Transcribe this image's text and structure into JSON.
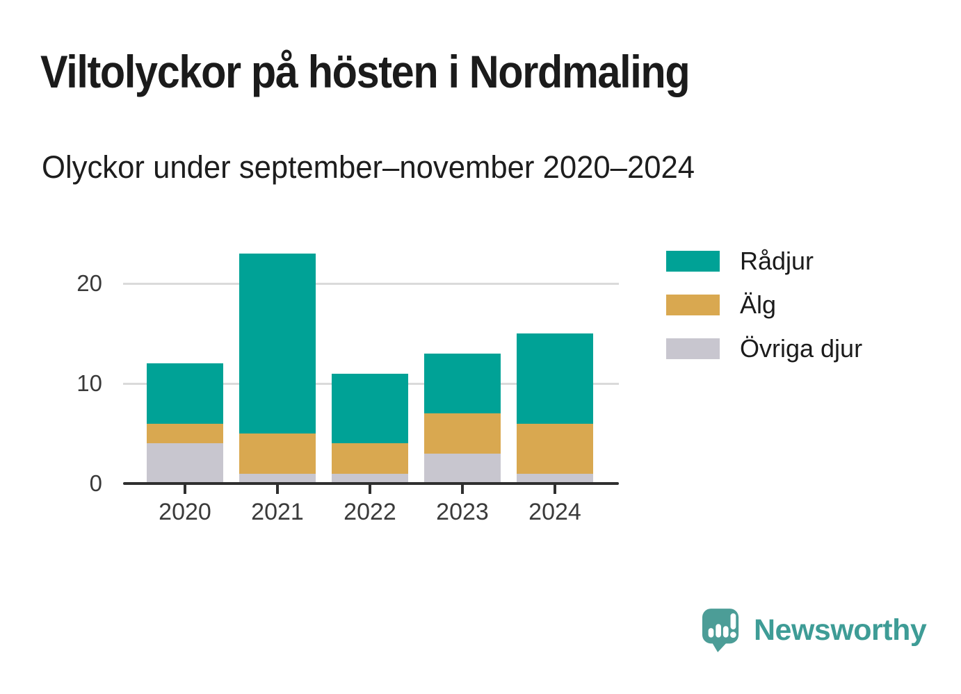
{
  "chart_data": {
    "type": "bar",
    "stacked": true,
    "title": "Viltolyckor på hösten i Nordmaling",
    "subtitle": "Olyckor under september–november 2020–2024",
    "categories": [
      "2020",
      "2021",
      "2022",
      "2023",
      "2024"
    ],
    "series": [
      {
        "name": "Rådjur",
        "color": "#00a296",
        "values": [
          6,
          18,
          7,
          6,
          9
        ]
      },
      {
        "name": "Älg",
        "color": "#d9a850",
        "values": [
          2,
          4,
          3,
          4,
          5
        ]
      },
      {
        "name": "Övriga djur",
        "color": "#c8c6cf",
        "values": [
          4,
          1,
          1,
          3,
          1
        ]
      }
    ],
    "totals": [
      12,
      23,
      11,
      13,
      15
    ],
    "stack_order_bottom_to_top": [
      "Övriga djur",
      "Älg",
      "Rådjur"
    ],
    "yticks": [
      0,
      10,
      20
    ],
    "ylim": [
      0,
      24
    ],
    "xlabel": "",
    "ylabel": "",
    "grid": "horizontal",
    "legend_position": "right",
    "colors": {
      "gridline": "#dadada",
      "axis": "#2f2f2f",
      "tick_label": "#3a3a3a"
    }
  },
  "branding": {
    "logo_text": "Newsworthy",
    "logo_text_color": "#3e9c96",
    "logo_icon": "speech-bubble-with-bar-chart-and-exclamation",
    "logo_icon_color": "#4c9d97"
  }
}
